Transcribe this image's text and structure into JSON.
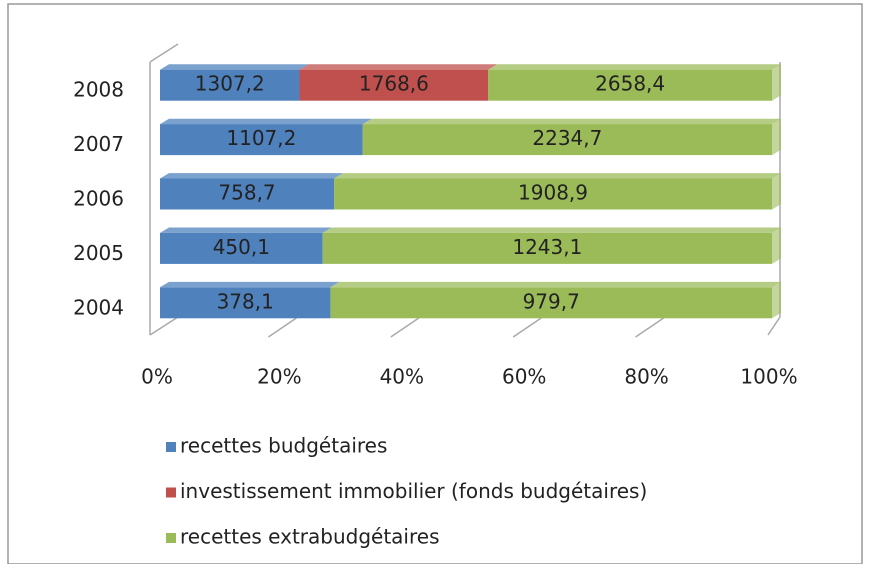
{
  "chart_data": {
    "type": "bar",
    "orientation": "horizontal",
    "stacking": "percent",
    "categories": [
      "2008",
      "2007",
      "2006",
      "2005",
      "2004"
    ],
    "series": [
      {
        "name": "recettes budgétaires",
        "color": "#4f81bd",
        "values": [
          1307.2,
          1107.2,
          758.7,
          450.1,
          378.1
        ],
        "value_labels": [
          "1307,2",
          "1107,2",
          "758,7",
          "450,1",
          "378,1"
        ]
      },
      {
        "name": "investissement immobilier (fonds budgétaires)",
        "color": "#c0504d",
        "values": [
          1768.6,
          null,
          null,
          null,
          null
        ],
        "value_labels": [
          "1768,6",
          null,
          null,
          null,
          null
        ]
      },
      {
        "name": "recettes extrabudgétaires",
        "color": "#9bbb59",
        "values": [
          2658.4,
          2234.7,
          1908.9,
          1243.1,
          979.7
        ],
        "value_labels": [
          "2658,4",
          "2234,7",
          "1908,9",
          "1243,1",
          "979,7"
        ]
      }
    ],
    "xlim": [
      0,
      100
    ],
    "xticks": [
      {
        "value": 0,
        "label": "0%"
      },
      {
        "value": 20,
        "label": "20%"
      },
      {
        "value": 40,
        "label": "40%"
      },
      {
        "value": 60,
        "label": "60%"
      },
      {
        "value": 80,
        "label": "80%"
      },
      {
        "value": 100,
        "label": "100%"
      }
    ],
    "legend": "bottom-left"
  }
}
